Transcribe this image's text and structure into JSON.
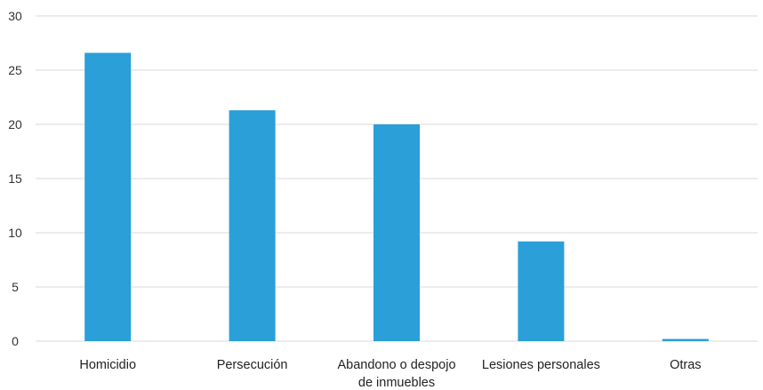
{
  "chart_data": {
    "type": "bar",
    "categories": [
      "Homicidio",
      "Persecución",
      "Abandono o despojo de inmuebles",
      "Lesiones personales",
      "Otras"
    ],
    "category_lines": [
      [
        "Homicidio"
      ],
      [
        "Persecución"
      ],
      [
        "Abandono o despojo",
        "de inmuebles"
      ],
      [
        "Lesiones personales"
      ],
      [
        "Otras"
      ]
    ],
    "values": [
      26.6,
      21.3,
      20.0,
      9.2,
      0.2
    ],
    "ylim": [
      0,
      30
    ],
    "yticks": [
      0,
      5,
      10,
      15,
      20,
      25,
      30
    ],
    "title": "",
    "xlabel": "",
    "ylabel": "",
    "grid": true,
    "legend": "none",
    "bar_color": "#2A9FD8",
    "grid_color": "#D9D9D9"
  }
}
